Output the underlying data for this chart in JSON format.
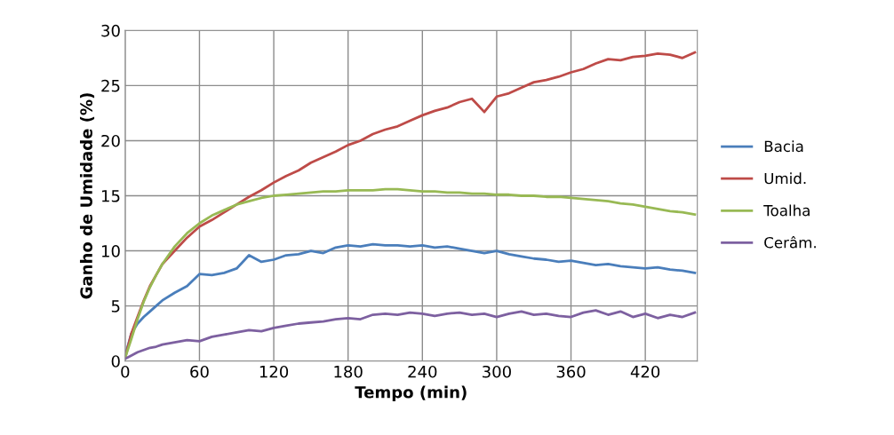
{
  "chart_data": {
    "type": "line",
    "xlabel": "Tempo (min)",
    "ylabel": "Ganho de Umidade (%)",
    "x": [
      0,
      5,
      10,
      15,
      20,
      25,
      30,
      40,
      50,
      60,
      70,
      80,
      90,
      100,
      110,
      120,
      130,
      140,
      150,
      160,
      170,
      180,
      190,
      200,
      210,
      220,
      230,
      240,
      250,
      260,
      270,
      280,
      290,
      300,
      310,
      320,
      330,
      340,
      350,
      360,
      370,
      380,
      390,
      400,
      410,
      420,
      430,
      440,
      450,
      460
    ],
    "series": [
      {
        "name": "Bacia",
        "color": "#4a7ebb",
        "values": [
          0.5,
          2.5,
          3.4,
          4,
          4.5,
          5,
          5.5,
          6.2,
          6.8,
          7.9,
          7.8,
          8.0,
          8.4,
          9.6,
          9.0,
          9.2,
          9.6,
          9.7,
          10.0,
          9.8,
          10.3,
          10.5,
          10.4,
          10.6,
          10.5,
          10.5,
          10.4,
          10.5,
          10.3,
          10.4,
          10.2,
          10.0,
          9.8,
          10.0,
          9.7,
          9.5,
          9.3,
          9.2,
          9.0,
          9.1,
          8.9,
          8.7,
          8.8,
          8.6,
          8.5,
          8.4,
          8.5,
          8.3,
          8.2,
          8.0
        ]
      },
      {
        "name": "Umid.",
        "color": "#be4b48",
        "values": [
          0.3,
          2.5,
          4,
          5.5,
          6.8,
          7.8,
          8.8,
          10,
          11.2,
          12.2,
          12.8,
          13.5,
          14.2,
          14.9,
          15.5,
          16.2,
          16.8,
          17.3,
          18,
          18.5,
          19,
          19.6,
          20,
          20.6,
          21,
          21.3,
          21.8,
          22.3,
          22.7,
          23,
          23.5,
          23.8,
          22.6,
          24,
          24.3,
          24.8,
          25.3,
          25.5,
          25.8,
          26.2,
          26.5,
          27,
          27.4,
          27.3,
          27.6,
          27.7,
          27.9,
          27.8,
          27.5,
          28
        ]
      },
      {
        "name": "Toalha",
        "color": "#98b954",
        "values": [
          0.3,
          2,
          3.8,
          5.4,
          6.7,
          7.8,
          8.8,
          10.4,
          11.6,
          12.5,
          13.2,
          13.7,
          14.2,
          14.5,
          14.8,
          15,
          15.1,
          15.2,
          15.3,
          15.4,
          15.4,
          15.5,
          15.5,
          15.5,
          15.6,
          15.6,
          15.5,
          15.4,
          15.4,
          15.3,
          15.3,
          15.2,
          15.2,
          15.1,
          15.1,
          15.0,
          15.0,
          14.9,
          14.9,
          14.8,
          14.7,
          14.6,
          14.5,
          14.3,
          14.2,
          14.0,
          13.8,
          13.6,
          13.5,
          13.3
        ]
      },
      {
        "name": "Cerâm.",
        "color": "#7d60a0",
        "values": [
          0.2,
          0.5,
          0.8,
          1.0,
          1.2,
          1.3,
          1.5,
          1.7,
          1.9,
          1.8,
          2.2,
          2.4,
          2.6,
          2.8,
          2.7,
          3.0,
          3.2,
          3.4,
          3.5,
          3.6,
          3.8,
          3.9,
          3.8,
          4.2,
          4.3,
          4.2,
          4.4,
          4.3,
          4.1,
          4.3,
          4.4,
          4.2,
          4.3,
          4.0,
          4.3,
          4.5,
          4.2,
          4.3,
          4.1,
          4.0,
          4.4,
          4.6,
          4.2,
          4.5,
          4.0,
          4.3,
          3.9,
          4.2,
          4.0,
          4.4
        ]
      }
    ],
    "xlim": [
      0,
      462
    ],
    "xticks": [
      0,
      60,
      120,
      180,
      240,
      300,
      360,
      420
    ],
    "ylim": [
      0,
      30
    ],
    "yticks": [
      0,
      5,
      10,
      15,
      20,
      25,
      30
    ],
    "grid": true,
    "legend": "right"
  }
}
